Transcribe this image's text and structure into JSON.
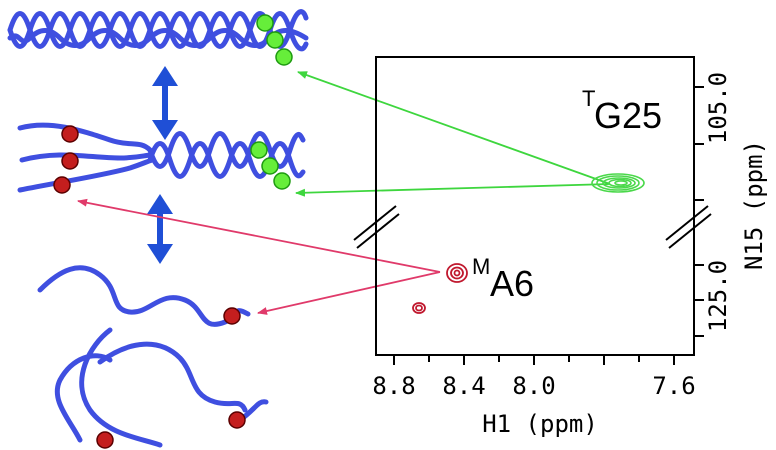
{
  "colors": {
    "protein": "#3f4fe0",
    "equilibrium_arrow": "#1f4fd6",
    "green_marker": "#66ee3a",
    "green_marker_stroke": "#1e9a10",
    "red_marker": "#c41e1e",
    "red_marker_stroke": "#5a0000",
    "green_arrow": "#3ed63e",
    "red_arrow": "#e03a6a",
    "green_peak": "#4ad84a",
    "red_peak": "#c0182e",
    "frame": "#000000"
  },
  "spectrum": {
    "x_axis": {
      "title": "H1 (ppm)",
      "ticks": [
        "8.8",
        "8.4",
        "8.0",
        "7.6"
      ]
    },
    "y_axis": {
      "title": "N15 (ppm)",
      "ticks": [
        "105.0",
        "125.0"
      ]
    },
    "peaks": [
      {
        "label_sup": "T",
        "label_main": "G25",
        "color": "green"
      },
      {
        "label_sup": "M",
        "label_main": "A6",
        "color": "red"
      }
    ]
  },
  "states": [
    "double helix",
    "partially unfolded",
    "random coil"
  ]
}
